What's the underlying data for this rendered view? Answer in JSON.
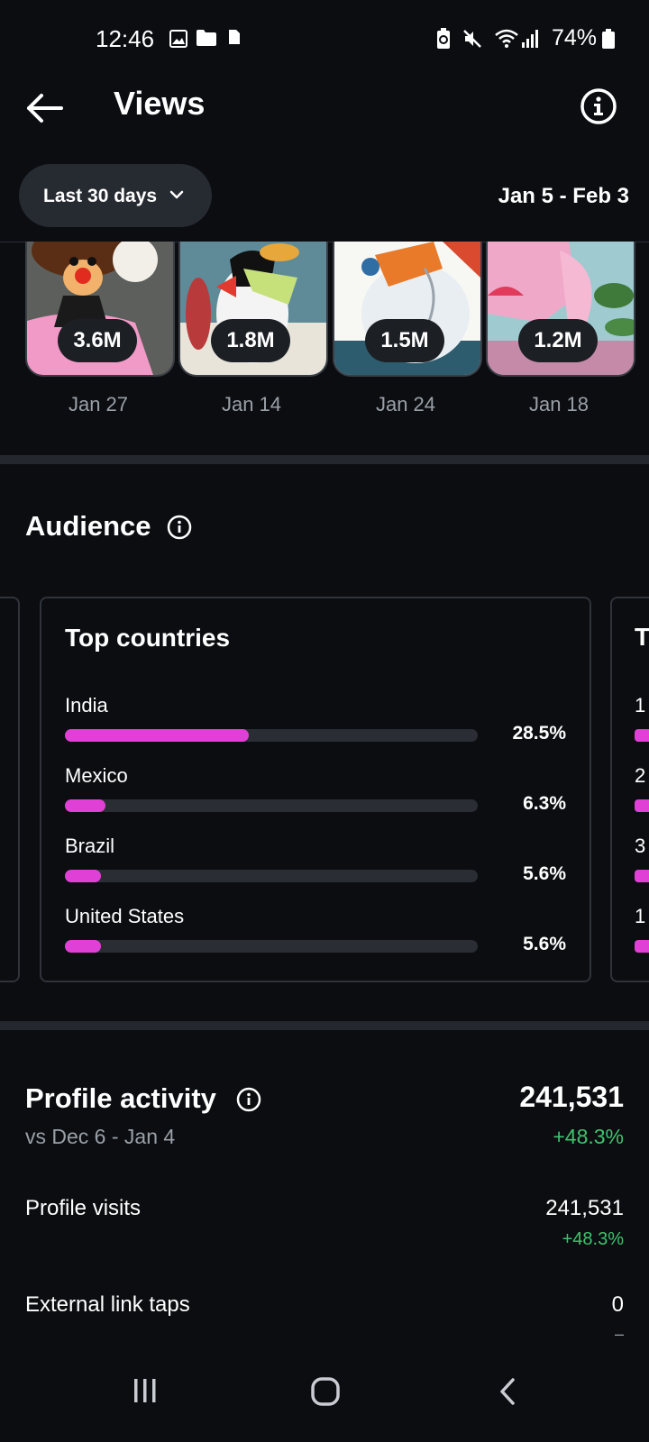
{
  "status_bar": {
    "time": "12:46",
    "battery": "74%",
    "icons": [
      "gallery-icon",
      "folder-icon",
      "sim-icon",
      "battery-saver-icon",
      "mute-icon",
      "wifi-icon",
      "signal-icon",
      "battery-icon"
    ]
  },
  "header": {
    "title": "Views",
    "back_icon": "arrow-left-icon",
    "info_icon": "info-icon"
  },
  "filter": {
    "label": "Last 30 days",
    "date_range": "Jan 5 - Feb 3"
  },
  "top_posts": [
    {
      "views": "3.6M",
      "date": "Jan 27"
    },
    {
      "views": "1.8M",
      "date": "Jan 14"
    },
    {
      "views": "1.5M",
      "date": "Jan 24"
    },
    {
      "views": "1.2M",
      "date": "Jan 18"
    }
  ],
  "audience": {
    "title": "Audience",
    "top_countries": {
      "title": "Top countries",
      "items": [
        {
          "name": "India",
          "percent_label": "28.5%",
          "value": 0.285
        },
        {
          "name": "Mexico",
          "percent_label": "6.3%",
          "value": 0.063
        },
        {
          "name": "Brazil",
          "percent_label": "5.6%",
          "value": 0.056
        },
        {
          "name": "United States",
          "percent_label": "5.6%",
          "value": 0.056
        }
      ]
    },
    "next_card_peek": {
      "title_initial": "T",
      "rows": [
        "1",
        "2",
        "3",
        "1"
      ]
    }
  },
  "profile_activity": {
    "title": "Profile activity",
    "comparison": "vs Dec 6 - Jan 4",
    "total": "241,531",
    "change": "+48.3%",
    "rows": [
      {
        "label": "Profile visits",
        "value": "241,531",
        "change": "+48.3%"
      },
      {
        "label": "External link taps",
        "value": "0",
        "change": "–"
      }
    ]
  },
  "colors": {
    "background": "#0b0d11",
    "accent_bar": "#e040d6",
    "positive": "#3ec46d"
  }
}
